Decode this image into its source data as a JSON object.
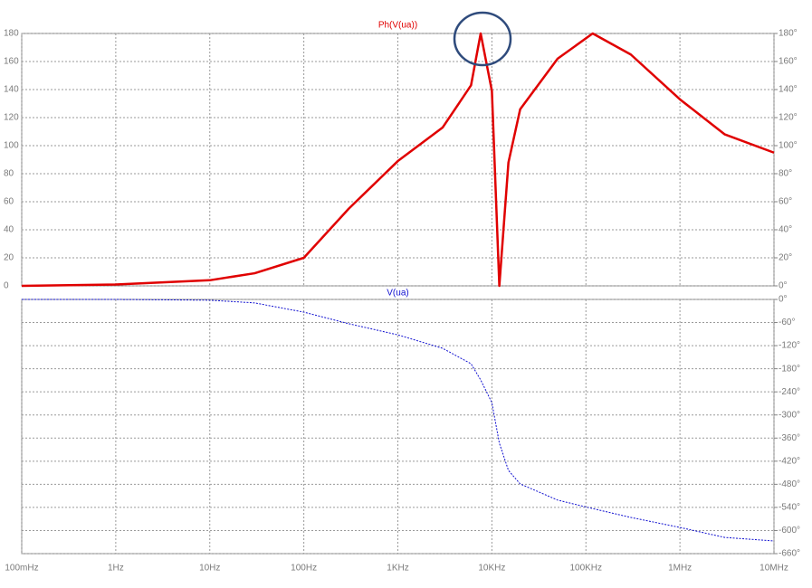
{
  "chart_data": [
    {
      "type": "line",
      "title": "Ph(V(ua))",
      "xscale": "log",
      "grid": true,
      "x": [
        0.1,
        1,
        10,
        30,
        100,
        300,
        1000,
        3000,
        6000,
        7600,
        10000,
        12000,
        15000,
        20000,
        50000,
        118000,
        300000,
        1000000,
        3000000,
        10000000
      ],
      "xlim": [
        0.1,
        10000000
      ],
      "series": [
        {
          "color": "#e00000",
          "values": [
            0,
            1,
            4,
            9,
            20,
            55,
            89,
            113,
            143,
            180,
            139,
            0,
            88,
            126,
            162,
            180,
            165,
            133,
            108,
            95
          ]
        }
      ],
      "ylim": [
        0,
        180
      ],
      "yticks": [
        0,
        20,
        40,
        60,
        80,
        100,
        120,
        140,
        160,
        180
      ],
      "y2lim": [
        0,
        180
      ],
      "y2ticks": [
        {
          "value": 0,
          "label": "0°"
        },
        {
          "value": 20,
          "label": "20°"
        },
        {
          "value": 40,
          "label": "40°"
        },
        {
          "value": 60,
          "label": "60°"
        },
        {
          "value": 80,
          "label": "80°"
        },
        {
          "value": 100,
          "label": "100°"
        },
        {
          "value": 120,
          "label": "120°"
        },
        {
          "value": 140,
          "label": "140°"
        },
        {
          "value": 160,
          "label": "160°"
        },
        {
          "value": 180,
          "label": "180°"
        }
      ]
    },
    {
      "type": "line",
      "title": "V(ua)",
      "xscale": "log",
      "grid": true,
      "x": [
        0.1,
        1,
        10,
        30,
        100,
        300,
        1000,
        3000,
        6000,
        7600,
        10000,
        12000,
        15000,
        20000,
        50000,
        118000,
        300000,
        1000000,
        3000000,
        10000000
      ],
      "xlim": [
        0.1,
        10000000
      ],
      "xticks": [
        {
          "value": 0.1,
          "label": "100mHz"
        },
        {
          "value": 1,
          "label": "1Hz"
        },
        {
          "value": 10,
          "label": "10Hz"
        },
        {
          "value": 100,
          "label": "100Hz"
        },
        {
          "value": 1000,
          "label": "1KHz"
        },
        {
          "value": 10000,
          "label": "10KHz"
        },
        {
          "value": 100000,
          "label": "100KHz"
        },
        {
          "value": 1000000,
          "label": "1MHz"
        },
        {
          "value": 10000000,
          "label": "10MHz"
        }
      ],
      "series": [
        {
          "color": "#1010d0",
          "axis": "y2",
          "values": [
            0,
            0,
            -2,
            -9,
            -33,
            -63,
            -92,
            -127,
            -167,
            -209,
            -268,
            -373,
            -444,
            -479,
            -521,
            -543,
            -566,
            -592,
            -618,
            -627
          ]
        }
      ],
      "y2lim": [
        -660,
        0
      ],
      "y2ticks": [
        {
          "value": 0,
          "label": "0°"
        },
        {
          "value": -60,
          "label": "-60°"
        },
        {
          "value": -120,
          "label": "-120°"
        },
        {
          "value": -180,
          "label": "-180°"
        },
        {
          "value": -240,
          "label": "-240°"
        },
        {
          "value": -300,
          "label": "-300°"
        },
        {
          "value": -360,
          "label": "-360°"
        },
        {
          "value": -420,
          "label": "-420°"
        },
        {
          "value": -480,
          "label": "-480°"
        },
        {
          "value": -540,
          "label": "-540°"
        },
        {
          "value": -600,
          "label": "-600°"
        },
        {
          "value": -660,
          "label": "-660°"
        }
      ]
    }
  ]
}
